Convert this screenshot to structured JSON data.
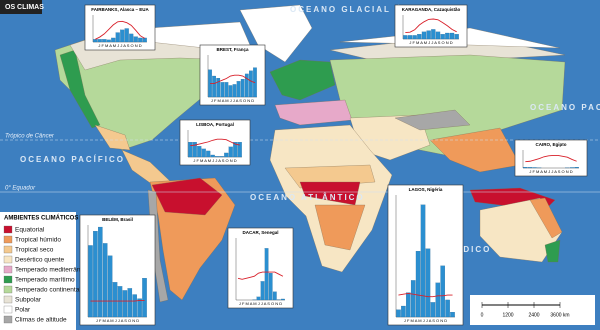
{
  "header": {
    "title": "OS CLIMAS"
  },
  "oceans": [
    "OCEANO GLACIAL ÁRTICO",
    "OCEANO PACÍFICO",
    "OCEANO PACÍFICO",
    "OCEANO ATLÂNTICO",
    "OCEANO ÍNDICO"
  ],
  "lines": {
    "tropic": "Trópico de Câncer",
    "equator": "0° Equador"
  },
  "legend": {
    "title": "AMBIENTES CLIMÁTICOS",
    "items": [
      {
        "label": "Equatorial",
        "color": "#c8102e"
      },
      {
        "label": "Tropical húmido",
        "color": "#ef9a5a"
      },
      {
        "label": "Tropical seco",
        "color": "#f4c98f"
      },
      {
        "label": "Desértico quente",
        "color": "#f7e6c4"
      },
      {
        "label": "Temperado mediterrânico",
        "color": "#e7a9c9"
      },
      {
        "label": "Temperado marítimo",
        "color": "#2e9c4f"
      },
      {
        "label": "Temperado continental",
        "color": "#b5d99a"
      },
      {
        "label": "Subpolar",
        "color": "#e8e3d6"
      },
      {
        "label": "Polar",
        "color": "#ffffff"
      },
      {
        "label": "Climas de altitude",
        "color": "#a7a7a7"
      }
    ]
  },
  "scale": {
    "ticks": [
      "0",
      "1200",
      "2400",
      "3600 km"
    ]
  },
  "months": "J F M A M J J A S O N D",
  "climographs": [
    {
      "name": "FAIRBANKS, Alasca – EUA",
      "ylim": [
        0,
        100
      ],
      "y2lim": [
        -30,
        30
      ],
      "precip": [
        10,
        10,
        10,
        8,
        15,
        35,
        45,
        50,
        30,
        20,
        15,
        15
      ],
      "temp": [
        -24,
        -19,
        -12,
        -2,
        8,
        15,
        16,
        13,
        7,
        -4,
        -16,
        -22
      ]
    },
    {
      "name": "KARAGANDA, Cazaquistão",
      "ylim": [
        0,
        100
      ],
      "y2lim": [
        -30,
        30
      ],
      "precip": [
        15,
        15,
        15,
        20,
        30,
        35,
        40,
        30,
        20,
        25,
        25,
        20
      ],
      "temp": [
        -14,
        -13,
        -7,
        5,
        13,
        19,
        20,
        18,
        11,
        3,
        -6,
        -12
      ]
    },
    {
      "name": "BREST, França",
      "ylim": [
        0,
        200
      ],
      "y2lim": [
        -10,
        40
      ],
      "precip": [
        130,
        100,
        90,
        70,
        70,
        55,
        60,
        75,
        85,
        110,
        125,
        140
      ],
      "temp": [
        6,
        6,
        8,
        10,
        12,
        15,
        16,
        16,
        15,
        12,
        9,
        7
      ]
    },
    {
      "name": "LISBOA, Portugal",
      "ylim": [
        0,
        200
      ],
      "y2lim": [
        -10,
        40
      ],
      "precip": [
        110,
        110,
        80,
        60,
        45,
        15,
        5,
        5,
        30,
        75,
        110,
        110
      ],
      "temp": [
        11,
        12,
        14,
        16,
        18,
        21,
        23,
        23,
        22,
        18,
        14,
        12
      ]
    },
    {
      "name": "CAIRO, Egipto",
      "ylim": [
        0,
        100
      ],
      "y2lim": [
        0,
        40
      ],
      "precip": [
        5,
        4,
        3,
        1,
        0,
        0,
        0,
        0,
        0,
        1,
        3,
        5
      ],
      "temp": [
        14,
        15,
        18,
        21,
        25,
        27,
        28,
        28,
        26,
        24,
        19,
        15
      ]
    },
    {
      "name": "BELÉM, Brasil",
      "ylim": [
        0,
        450
      ],
      "y2lim": [
        0,
        150
      ],
      "precip": [
        350,
        420,
        440,
        360,
        300,
        170,
        150,
        130,
        140,
        110,
        90,
        190
      ],
      "temp": [
        26,
        26,
        26,
        26,
        26,
        26,
        26,
        26,
        26,
        26,
        27,
        27
      ]
    },
    {
      "name": "DACAR, Senegal",
      "ylim": [
        0,
        300
      ],
      "y2lim": [
        0,
        60
      ],
      "precip": [
        0,
        0,
        0,
        0,
        1,
        15,
        90,
        250,
        130,
        40,
        2,
        5
      ],
      "temp": [
        21,
        20,
        21,
        22,
        23,
        26,
        27,
        27,
        27,
        27,
        25,
        23
      ]
    },
    {
      "name": "LAGOS, Nigéria",
      "ylim": [
        0,
        500
      ],
      "y2lim": [
        0,
        150
      ],
      "precip": [
        30,
        45,
        100,
        150,
        270,
        460,
        280,
        60,
        140,
        210,
        70,
        20
      ],
      "temp": [
        27,
        28,
        29,
        28,
        27,
        26,
        25,
        25,
        26,
        26,
        27,
        27
      ]
    }
  ]
}
